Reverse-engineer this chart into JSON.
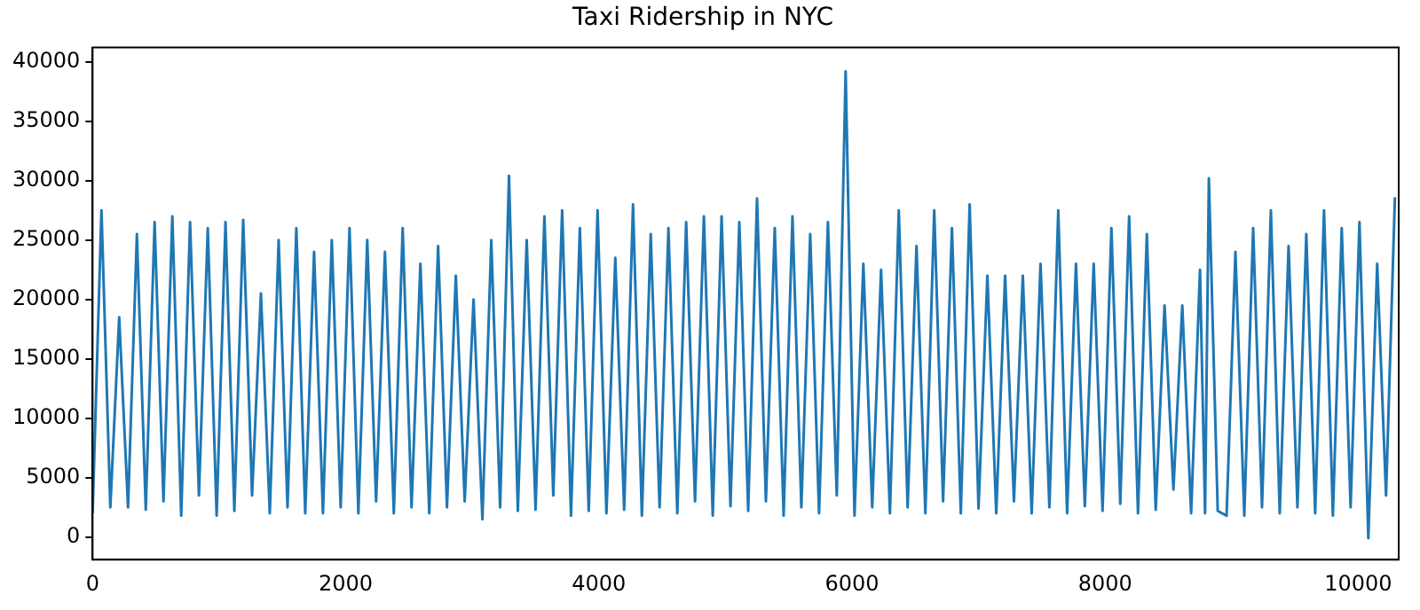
{
  "chart_data": {
    "type": "line",
    "title": "Taxi Ridership in NYC",
    "color": "#1f77b4",
    "marker": "none",
    "grid": false,
    "legend": false,
    "x": [
      0,
      70,
      140,
      210,
      280,
      350,
      420,
      490,
      560,
      630,
      700,
      770,
      840,
      910,
      980,
      1050,
      1120,
      1190,
      1260,
      1330,
      1400,
      1470,
      1540,
      1610,
      1680,
      1750,
      1820,
      1890,
      1960,
      2030,
      2100,
      2170,
      2240,
      2310,
      2380,
      2450,
      2520,
      2590,
      2660,
      2730,
      2800,
      2870,
      2940,
      3010,
      3080,
      3150,
      3220,
      3290,
      3360,
      3430,
      3500,
      3570,
      3640,
      3710,
      3780,
      3850,
      3920,
      3990,
      4060,
      4130,
      4200,
      4270,
      4340,
      4410,
      4480,
      4550,
      4620,
      4690,
      4760,
      4830,
      4900,
      4970,
      5040,
      5110,
      5180,
      5250,
      5320,
      5390,
      5460,
      5530,
      5600,
      5670,
      5740,
      5810,
      5880,
      5950,
      6020,
      6090,
      6160,
      6230,
      6300,
      6370,
      6440,
      6510,
      6580,
      6650,
      6720,
      6790,
      6860,
      6930,
      7000,
      7070,
      7140,
      7210,
      7280,
      7350,
      7420,
      7490,
      7560,
      7630,
      7700,
      7770,
      7840,
      7910,
      7980,
      8050,
      8120,
      8190,
      8260,
      8330,
      8400,
      8470,
      8540,
      8610,
      8680,
      8750,
      8790,
      8820,
      8890,
      8960,
      9030,
      9100,
      9170,
      9240,
      9310,
      9380,
      9450,
      9520,
      9590,
      9660,
      9730,
      9800,
      9870,
      9940,
      10010,
      10080,
      10150,
      10220,
      10290
    ],
    "values": [
      2000,
      27500,
      2500,
      18500,
      2500,
      25500,
      2300,
      26500,
      3000,
      27000,
      1800,
      26500,
      3500,
      26000,
      1800,
      26500,
      2200,
      26700,
      3500,
      20500,
      2000,
      25000,
      2500,
      26000,
      2000,
      24000,
      2000,
      25000,
      2500,
      26000,
      2000,
      25000,
      3000,
      24000,
      2000,
      26000,
      2500,
      23000,
      2000,
      24500,
      2500,
      22000,
      3000,
      20000,
      1500,
      25000,
      2500,
      30400,
      2200,
      25000,
      2300,
      27000,
      3500,
      27500,
      1800,
      26000,
      2200,
      27500,
      2000,
      23500,
      2300,
      28000,
      1800,
      25500,
      2500,
      26000,
      2000,
      26500,
      3000,
      27000,
      1800,
      27000,
      2600,
      26500,
      2200,
      28500,
      3000,
      26000,
      1800,
      27000,
      2500,
      25500,
      2000,
      26500,
      3500,
      39200,
      1800,
      23000,
      2500,
      22500,
      2000,
      27500,
      2500,
      24500,
      2000,
      27500,
      3000,
      26000,
      2000,
      28000,
      2400,
      22000,
      2000,
      22000,
      3000,
      22000,
      2000,
      23000,
      2500,
      27500,
      2000,
      23000,
      2600,
      23000,
      2200,
      26000,
      2800,
      27000,
      2000,
      25500,
      2300,
      19500,
      4000,
      19500,
      2000,
      22500,
      2000,
      30200,
      2200,
      1800,
      24000,
      1800,
      26000,
      2500,
      27500,
      2000,
      24500,
      2500,
      25500,
      2000,
      27500,
      1800,
      26000,
      2500,
      26500,
      -100,
      23000,
      3500,
      28600
    ],
    "xlim": [
      0,
      10320
    ],
    "ylim": [
      -1900,
      41200
    ],
    "xticks": [
      0,
      2000,
      4000,
      6000,
      8000,
      10000
    ],
    "yticks": [
      0,
      5000,
      10000,
      15000,
      20000,
      25000,
      30000,
      35000,
      40000
    ]
  }
}
